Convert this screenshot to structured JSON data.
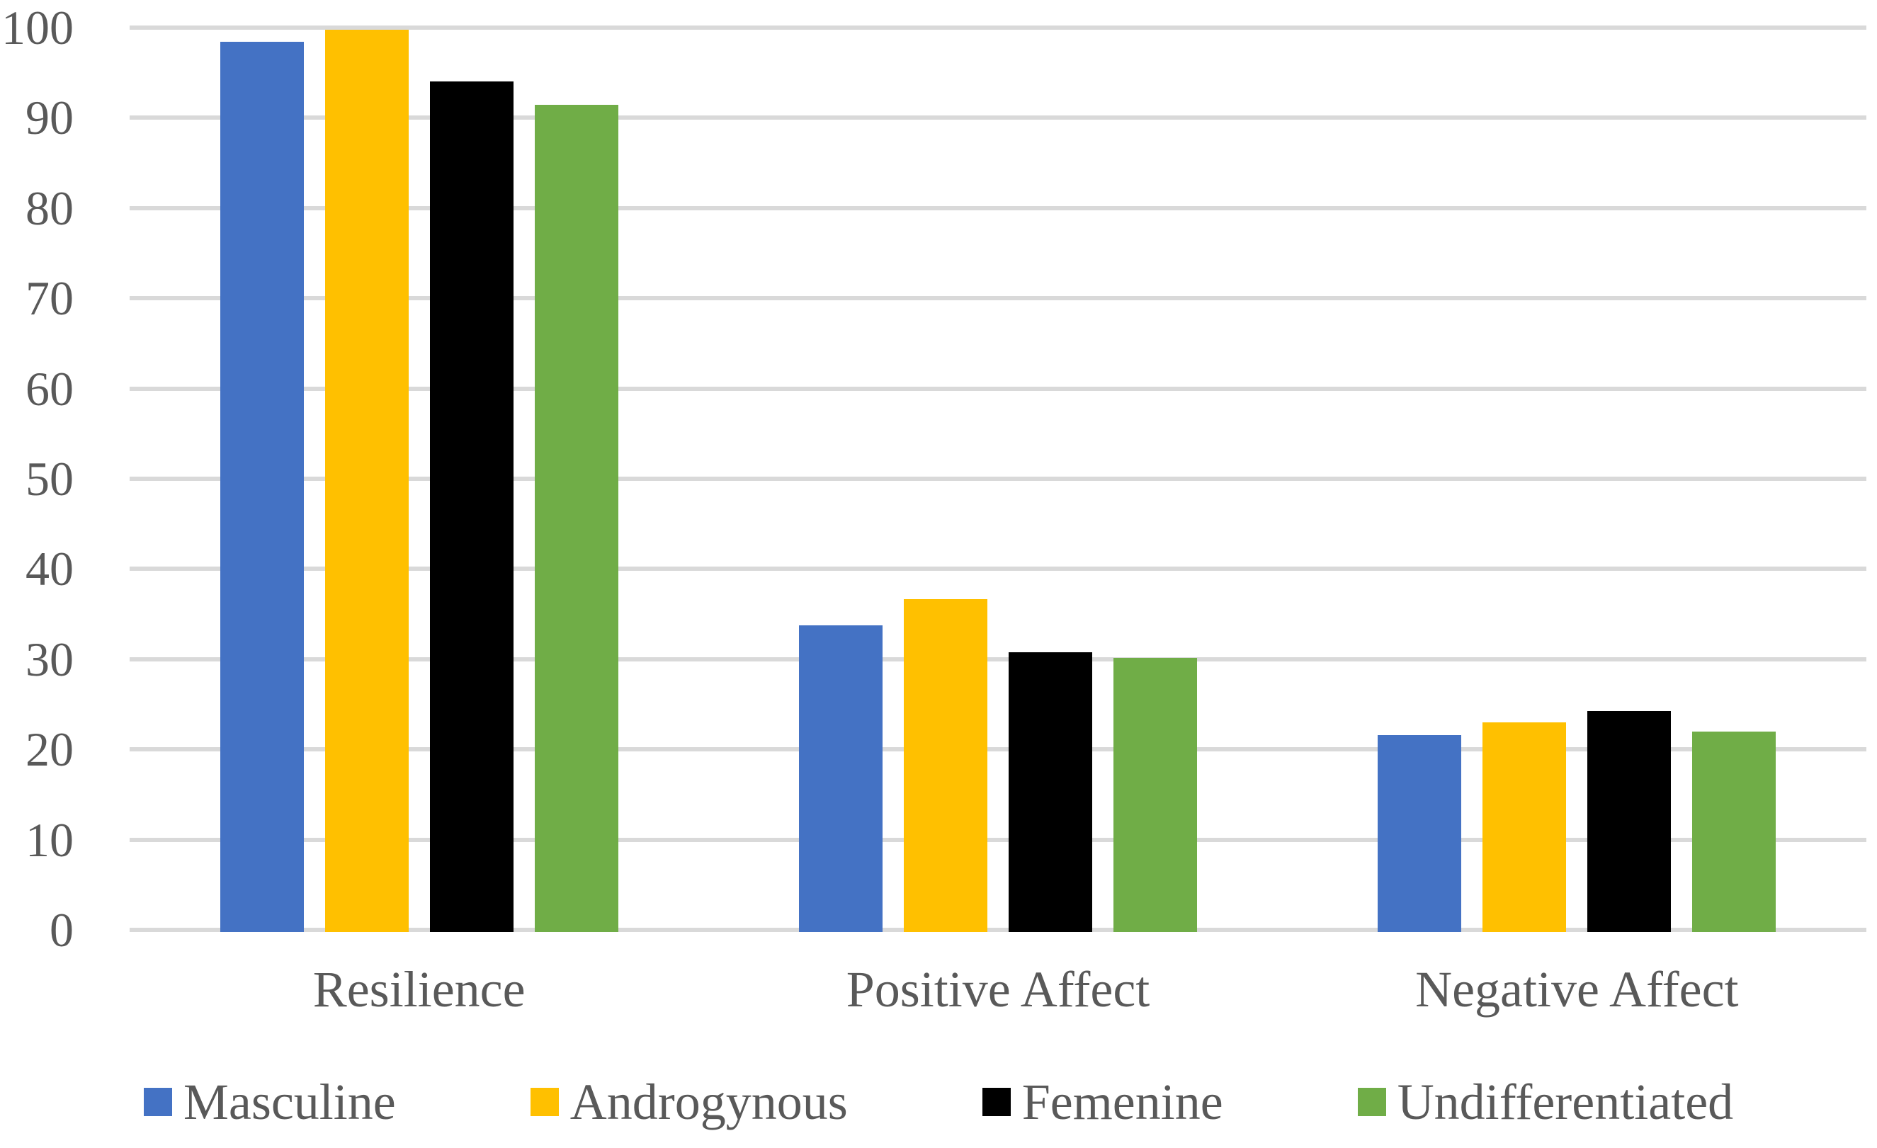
{
  "chart_data": {
    "type": "bar",
    "title": "",
    "xlabel": "",
    "ylabel": "",
    "categories": [
      "Resilience",
      "Positive Affect",
      "Negative Affect"
    ],
    "series": [
      {
        "name": "Masculine",
        "color": "#4472C4",
        "values": [
          98.7,
          34.0,
          21.8
        ]
      },
      {
        "name": "Androgynous",
        "color": "#FFC000",
        "values": [
          100.0,
          36.9,
          23.2
        ]
      },
      {
        "name": "Femenine",
        "color": "#000000",
        "values": [
          94.3,
          31.0,
          24.5
        ]
      },
      {
        "name": "Undifferentiated",
        "color": "#70AD47",
        "values": [
          91.7,
          30.4,
          22.2
        ]
      }
    ],
    "ylim": [
      0,
      100
    ],
    "yticks": [
      0,
      10,
      20,
      30,
      40,
      50,
      60,
      70,
      80,
      90,
      100
    ],
    "grid": true,
    "gridline_color": "#D9D9D9",
    "text_color": "#595959",
    "background_color": "#FFFFFF",
    "legend_position": "bottom"
  }
}
